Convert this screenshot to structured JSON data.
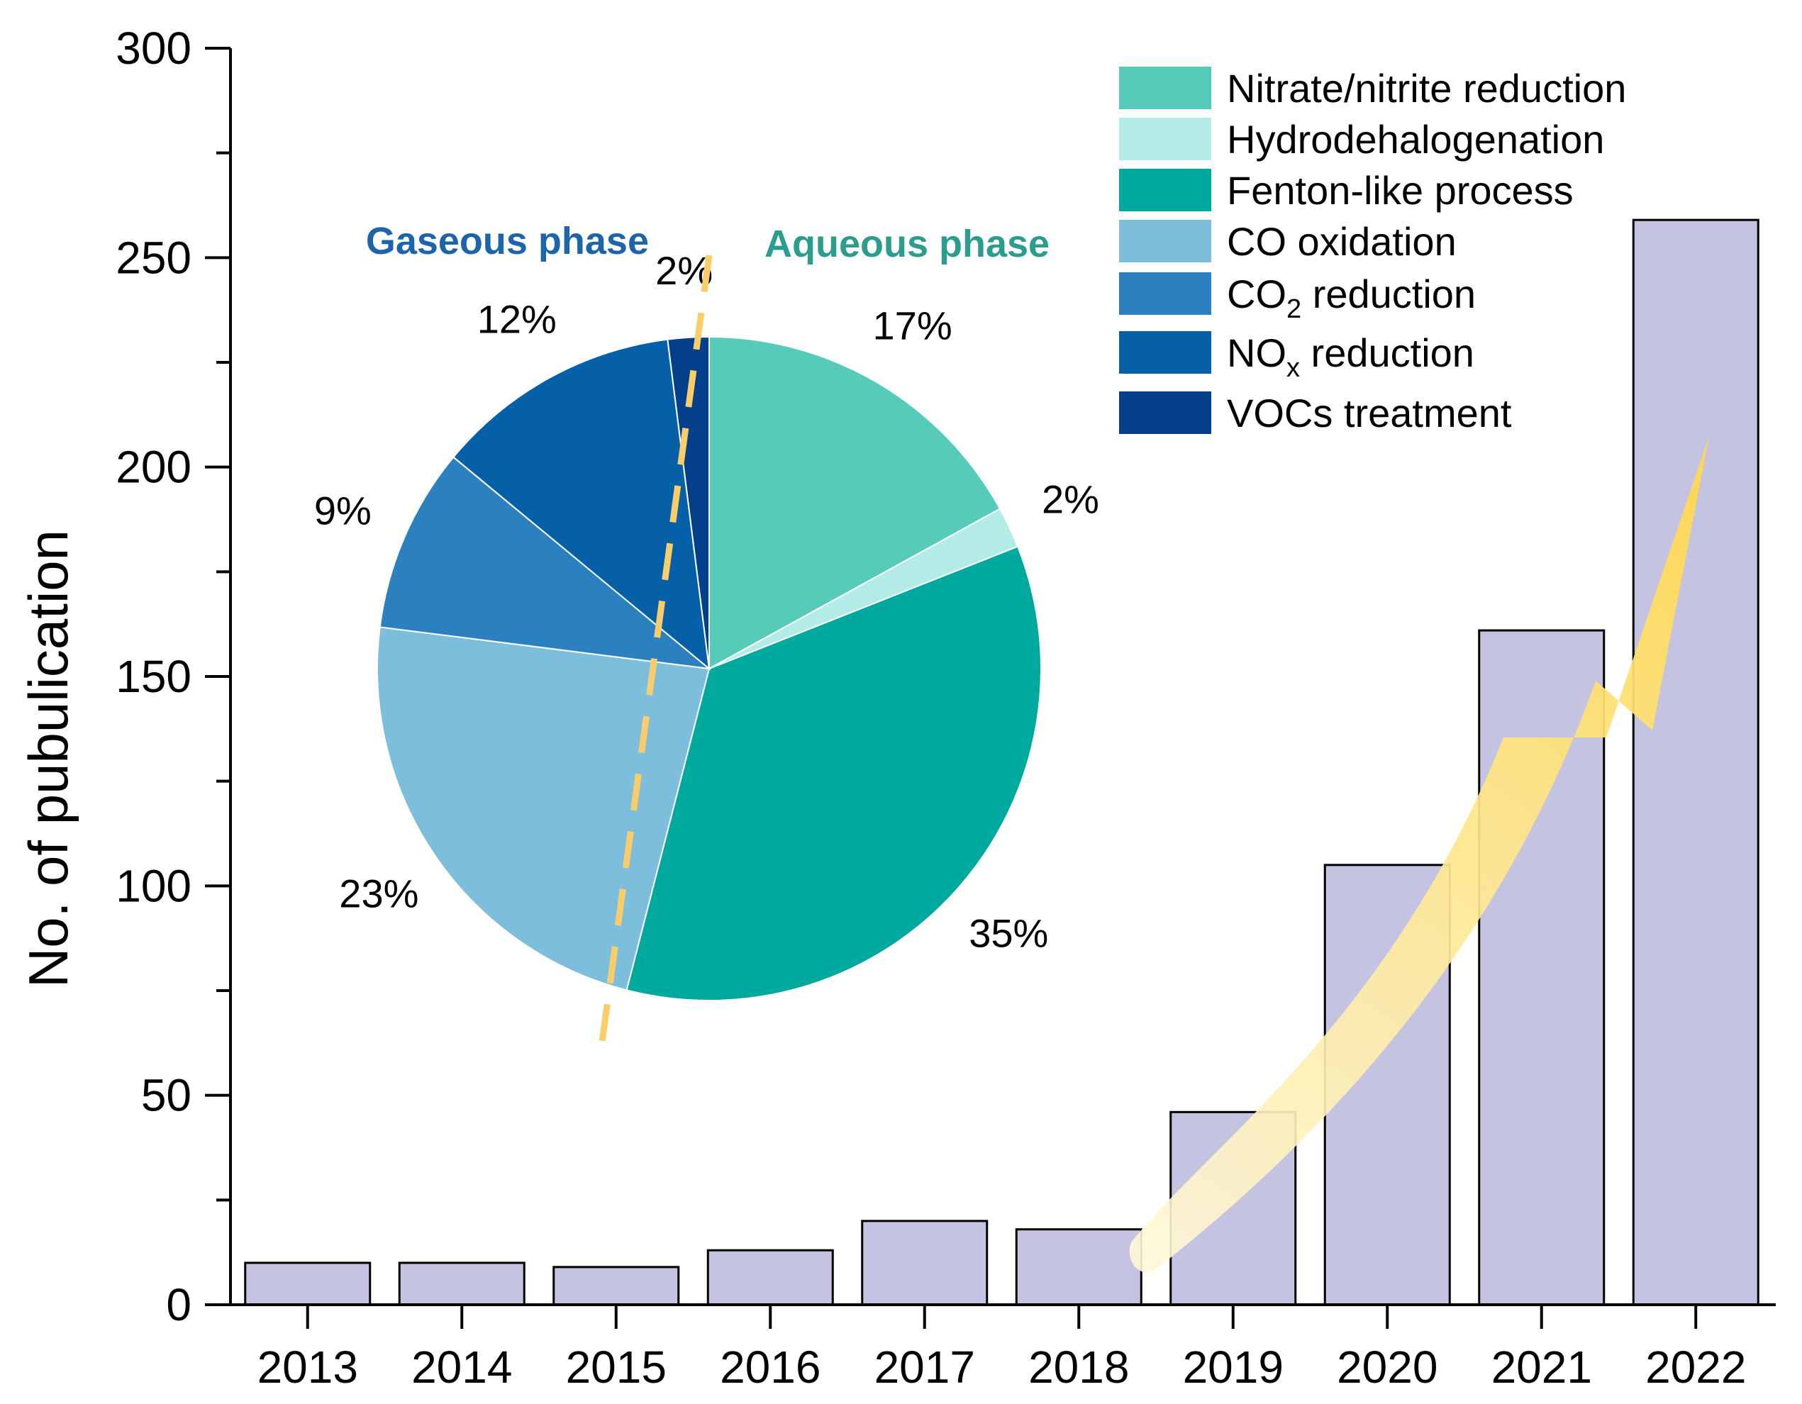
{
  "chart_data": [
    {
      "type": "bar",
      "ylabel": "No. of pubulication",
      "xlabel": "",
      "ylim": [
        0,
        300
      ],
      "yticks": [
        0,
        50,
        100,
        150,
        200,
        250,
        300
      ],
      "categories": [
        "2013",
        "2014",
        "2015",
        "2016",
        "2017",
        "2018",
        "2019",
        "2020",
        "2021",
        "2022"
      ],
      "values": [
        10,
        10,
        9,
        13,
        20,
        18,
        46,
        105,
        161,
        259
      ],
      "bar_color": "#c4c3e2",
      "arrow_color": "#ffd84d"
    },
    {
      "type": "pie",
      "labels": [
        "Nitrate/nitrite reduction",
        "Hydrodehalogenation",
        "Fenton-like process",
        "CO oxidation",
        "CO2 reduction",
        "NOx reduction",
        "VOCs treatment"
      ],
      "legend": [
        {
          "main": "Nitrate/nitrite reduction",
          "sub": "",
          "rest": "",
          "color": "#57cbba"
        },
        {
          "main": "Hydrodehalogenation",
          "sub": "",
          "rest": "",
          "color": "#b3ebe6"
        },
        {
          "main": "Fenton-like process",
          "sub": "",
          "rest": "",
          "color": "#00a99d"
        },
        {
          "main": "CO oxidation",
          "sub": "",
          "rest": "",
          "color": "#7dbedd"
        },
        {
          "main": "CO",
          "sub": "2",
          "rest": " reduction",
          "color": "#2b80c0"
        },
        {
          "main": "NO",
          "sub": "x",
          "rest": " reduction",
          "color": "#0660a7"
        },
        {
          "main": "VOCs treatment",
          "sub": "",
          "rest": "",
          "color": "#033f8a"
        }
      ],
      "values": [
        17,
        2,
        35,
        23,
        9,
        12,
        2
      ],
      "value_labels": [
        "17%",
        "2%",
        "35%",
        "23%",
        "9%",
        "12%",
        "2%"
      ],
      "colors": [
        "#57cbba",
        "#b3ebe6",
        "#00a99d",
        "#7dbedd",
        "#2b80c0",
        "#0660a7",
        "#033f8a"
      ],
      "phase_labels": {
        "gaseous": "Gaseous phase",
        "aqueous": "Aqueous phase"
      },
      "phase_colors": {
        "gaseous": "#1c65aa",
        "aqueous": "#2a9d8f"
      },
      "divider_color": "#f8cd6a"
    }
  ]
}
